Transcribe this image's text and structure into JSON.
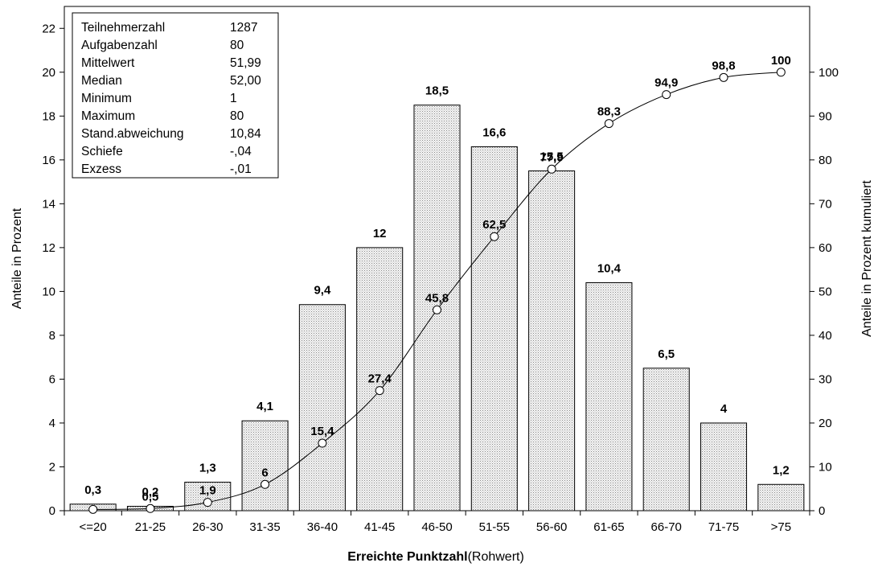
{
  "chart_data": {
    "type": "bar",
    "categories": [
      "<=20",
      "21-25",
      "26-30",
      "31-35",
      "36-40",
      "41-45",
      "46-50",
      "51-55",
      "56-60",
      "61-65",
      "66-70",
      "71-75",
      ">75"
    ],
    "series": [
      {
        "values": [
          0.3,
          0.2,
          1.3,
          4.1,
          9.4,
          12,
          18.5,
          16.6,
          15.5,
          10.4,
          6.5,
          4,
          1.2
        ],
        "labels": [
          "0,3",
          "0,2",
          "1,3",
          "4,1",
          "9,4",
          "12",
          "18,5",
          "16,6",
          "15,5",
          "10,4",
          "6,5",
          "4",
          "1,2"
        ]
      },
      {
        "type": "line",
        "axis": "right",
        "values": [
          0.3,
          0.5,
          1.9,
          6,
          15.4,
          27.4,
          45.8,
          62.5,
          77.9,
          88.3,
          94.9,
          98.8,
          100
        ],
        "labels": [
          "",
          "0,5",
          "1,9",
          "6",
          "15,4",
          "27,4",
          "45,8",
          "62,5",
          "77,9",
          "88,3",
          "94,9",
          "98,8",
          "100"
        ]
      }
    ],
    "xlabel_bold": "Erreichte Punktzahl",
    "xlabel_rest": "(Rohwert)",
    "ylabel": "Anteile in Prozent",
    "y2label": "Anteile in Prozent kumuliert",
    "ylim": [
      0,
      23
    ],
    "y2lim": [
      0,
      115
    ],
    "yticks": [
      0,
      2,
      4,
      6,
      8,
      10,
      12,
      14,
      16,
      18,
      20,
      22
    ],
    "y2ticks": [
      0,
      10,
      20,
      30,
      40,
      50,
      60,
      70,
      80,
      90,
      100
    ],
    "stats": [
      [
        "Teilnehmerzahl",
        "1287"
      ],
      [
        "Aufgabenzahl",
        "80"
      ],
      [
        "Mittelwert",
        "51,99"
      ],
      [
        "Median",
        "52,00"
      ],
      [
        "Minimum",
        "1"
      ],
      [
        "Maximum",
        "80"
      ],
      [
        "Stand.abweichung",
        "10,84"
      ],
      [
        "Schiefe",
        "-,04"
      ],
      [
        "Exzess",
        "-,01"
      ]
    ]
  }
}
